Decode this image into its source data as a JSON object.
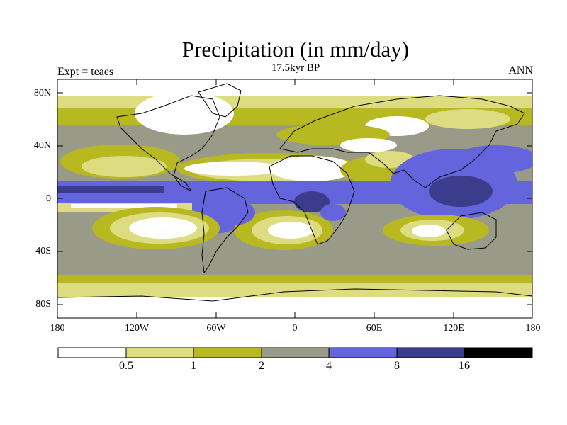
{
  "title": "Precipitation (in mm/day)",
  "subtitle": "17.5kyr BP",
  "left_label": "Expt = teaes",
  "right_label": "ANN",
  "lat_labels": [
    "80N",
    "40N",
    "0",
    "40S",
    "80S"
  ],
  "lon_labels": [
    "180",
    "120W",
    "60W",
    "0",
    "60E",
    "120E",
    "180"
  ],
  "colorbar": {
    "levels": [
      "0.5",
      "1",
      "2",
      "4",
      "8",
      "16"
    ],
    "colors": [
      "#ffffff",
      "#dedc80",
      "#b8b820",
      "#9a9a88",
      "#6464dc",
      "#3c3c8c",
      "#000000"
    ]
  },
  "colors": {
    "dry": "#ffffff",
    "light": "#dedc80",
    "moderate": "#b8b820",
    "medium": "#9a9a88",
    "wet": "#6464dc",
    "very_wet": "#3c3c8c",
    "extreme": "#000000",
    "coast": "#000000"
  }
}
